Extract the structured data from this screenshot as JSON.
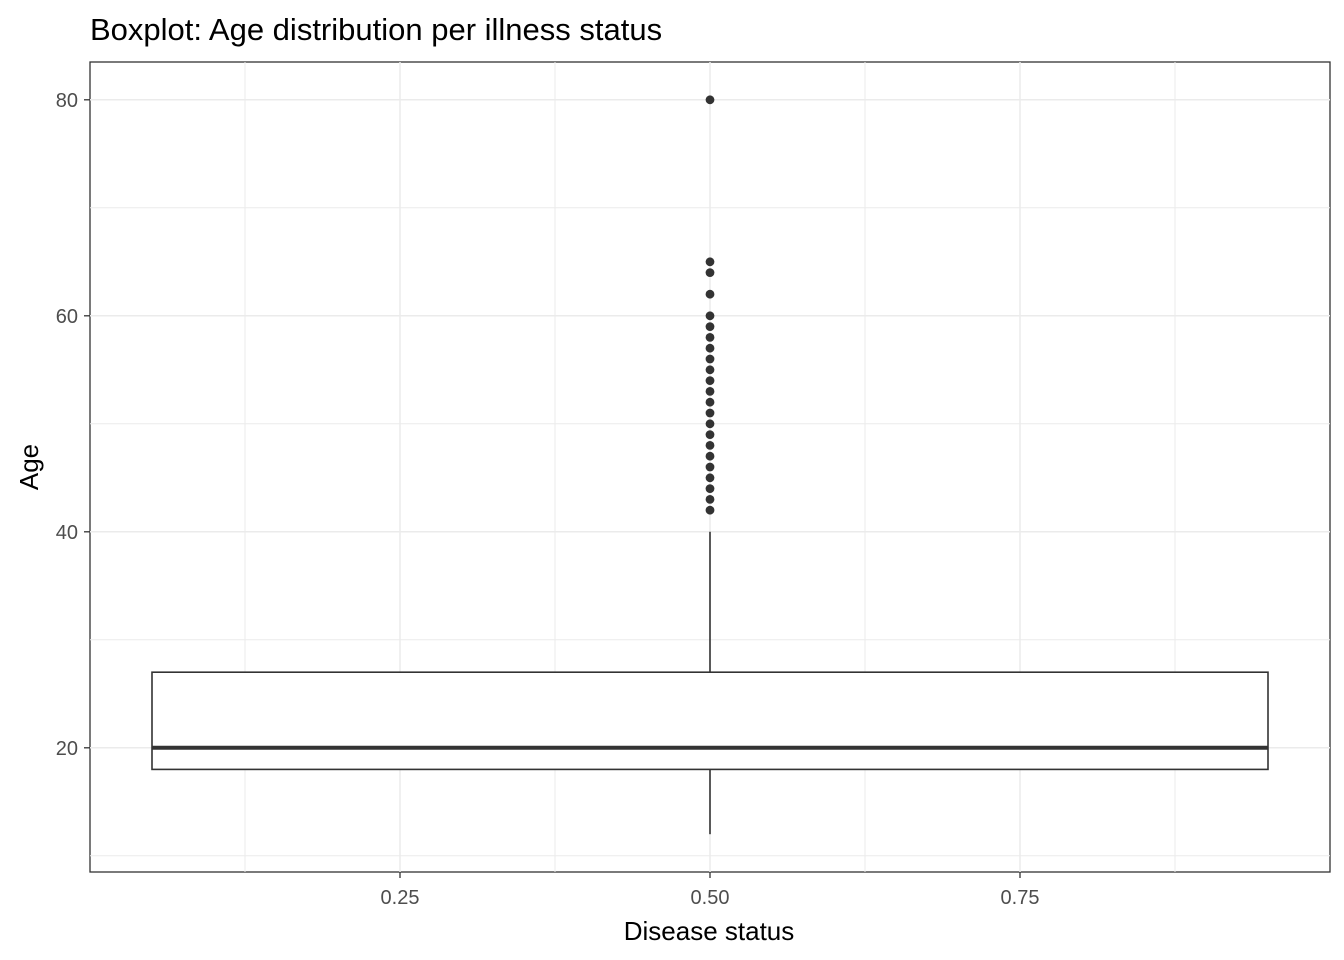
{
  "chart_data": {
    "type": "boxplot",
    "title": "Boxplot: Age distribution per illness status",
    "xlabel": "Disease status",
    "ylabel": "Age",
    "xlim": [
      0.0,
      1.0
    ],
    "ylim": [
      8.5,
      83.5
    ],
    "x_ticks": [
      0.25,
      0.5,
      0.75
    ],
    "x_tick_labels": [
      "0.25",
      "0.50",
      "0.75"
    ],
    "y_ticks": [
      20,
      40,
      60,
      80
    ],
    "y_tick_labels": [
      "20",
      "40",
      "60",
      "80"
    ],
    "grid": true,
    "box": {
      "x": 0.5,
      "x_range": [
        0.05,
        0.95
      ],
      "lower_whisker": 12,
      "q1": 18,
      "median": 20,
      "q3": 27,
      "upper_whisker": 40,
      "outliers": [
        42,
        43,
        44,
        45,
        46,
        47,
        48,
        49,
        50,
        51,
        52,
        53,
        54,
        55,
        56,
        57,
        58,
        59,
        60,
        62,
        64,
        65,
        80
      ]
    }
  }
}
